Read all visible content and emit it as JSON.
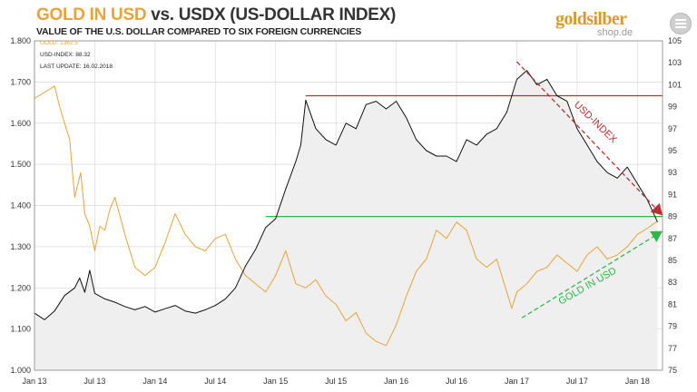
{
  "header": {
    "title_gold": "GOLD IN USD",
    "title_rest": "vs. USDX (US-DOLLAR  INDEX)",
    "subtitle": "VALUE OF THE U.S. DOLLAR COMPARED TO SIX FOREIGN CURRENCIES"
  },
  "logo": {
    "brand": "goldsilber",
    "domain": "shop.de"
  },
  "legend": {
    "gold": "GOLD: 1362.5",
    "usd": "USD-INDEX: 88.32",
    "update": "LAST UPDATE: 16.02.2018"
  },
  "annotations": {
    "usd_index": "USD-INDEX",
    "gold_in_usd": "GOLD IN USD"
  },
  "colors": {
    "gold": "#e8a33a",
    "usd": "#111111",
    "resistance": "#b83232",
    "support": "#2db84a",
    "fill": "#efefef"
  },
  "chart_data": {
    "type": "line",
    "x_ticks": [
      "Jan 13",
      "Jul 13",
      "Jan 14",
      "Jul 14",
      "Jan 15",
      "Jul 15",
      "Jan 16",
      "Jul 16",
      "Jan 17",
      "Jul 17",
      "Jan 18"
    ],
    "xlim": [
      0,
      62.5
    ],
    "left_axis": {
      "ticks": [
        "1.000",
        "1.100",
        "1.200",
        "1.300",
        "1.400",
        "1.500",
        "1.600",
        "1.700",
        "1.800"
      ],
      "ylim": [
        1000,
        1800
      ]
    },
    "right_axis": {
      "ticks": [
        "75",
        "77",
        "79",
        "81",
        "83",
        "85",
        "87",
        "89",
        "91",
        "93",
        "95",
        "97",
        "99",
        "101",
        "103",
        "105"
      ],
      "ylim": [
        75,
        105
      ]
    },
    "grid": true,
    "series": [
      {
        "name": "GOLD IN USD",
        "axis": "left",
        "color": "#e8a33a",
        "points": [
          [
            0,
            1660
          ],
          [
            1,
            1675
          ],
          [
            2,
            1690
          ],
          [
            2.5,
            1640
          ],
          [
            3,
            1600
          ],
          [
            3.5,
            1560
          ],
          [
            4,
            1420
          ],
          [
            4.6,
            1480
          ],
          [
            5,
            1380
          ],
          [
            5.5,
            1350
          ],
          [
            6,
            1290
          ],
          [
            6.5,
            1350
          ],
          [
            7,
            1340
          ],
          [
            7.5,
            1390
          ],
          [
            8,
            1420
          ],
          [
            9,
            1330
          ],
          [
            10,
            1250
          ],
          [
            11,
            1230
          ],
          [
            12,
            1250
          ],
          [
            13,
            1310
          ],
          [
            14,
            1380
          ],
          [
            15,
            1330
          ],
          [
            16,
            1300
          ],
          [
            17,
            1290
          ],
          [
            18,
            1320
          ],
          [
            19,
            1330
          ],
          [
            20,
            1270
          ],
          [
            21,
            1230
          ],
          [
            22,
            1210
          ],
          [
            23,
            1190
          ],
          [
            24,
            1230
          ],
          [
            25,
            1290
          ],
          [
            26,
            1210
          ],
          [
            27,
            1200
          ],
          [
            28,
            1220
          ],
          [
            29,
            1180
          ],
          [
            30,
            1160
          ],
          [
            31,
            1120
          ],
          [
            32,
            1140
          ],
          [
            33,
            1090
          ],
          [
            34,
            1070
          ],
          [
            35,
            1060
          ],
          [
            36,
            1110
          ],
          [
            37,
            1180
          ],
          [
            38,
            1240
          ],
          [
            39,
            1270
          ],
          [
            40,
            1340
          ],
          [
            41,
            1320
          ],
          [
            42,
            1360
          ],
          [
            43,
            1340
          ],
          [
            44,
            1270
          ],
          [
            45,
            1250
          ],
          [
            46,
            1270
          ],
          [
            47,
            1190
          ],
          [
            47.5,
            1150
          ],
          [
            48,
            1190
          ],
          [
            49,
            1210
          ],
          [
            50,
            1240
          ],
          [
            51,
            1250
          ],
          [
            52,
            1280
          ],
          [
            53,
            1260
          ],
          [
            54,
            1240
          ],
          [
            55,
            1280
          ],
          [
            56,
            1300
          ],
          [
            57,
            1270
          ],
          [
            58,
            1280
          ],
          [
            59,
            1300
          ],
          [
            60,
            1330
          ],
          [
            61,
            1345
          ],
          [
            62,
            1362
          ]
        ]
      },
      {
        "name": "USD-INDEX",
        "axis": "right",
        "color": "#111111",
        "points": [
          [
            0,
            80.2
          ],
          [
            1,
            79.6
          ],
          [
            2,
            80.4
          ],
          [
            3,
            81.8
          ],
          [
            4,
            82.5
          ],
          [
            4.5,
            83.4
          ],
          [
            5,
            82.1
          ],
          [
            5.5,
            84.1
          ],
          [
            6,
            82.0
          ],
          [
            7,
            81.5
          ],
          [
            8,
            81.2
          ],
          [
            9,
            80.8
          ],
          [
            10,
            80.5
          ],
          [
            11,
            80.8
          ],
          [
            12,
            80.3
          ],
          [
            13,
            80.6
          ],
          [
            14,
            80.9
          ],
          [
            15,
            80.4
          ],
          [
            16,
            80.2
          ],
          [
            17,
            80.5
          ],
          [
            18,
            80.9
          ],
          [
            19,
            81.5
          ],
          [
            20,
            82.5
          ],
          [
            21,
            84.5
          ],
          [
            22,
            86.0
          ],
          [
            23,
            88.0
          ],
          [
            24,
            88.8
          ],
          [
            25,
            91.5
          ],
          [
            26,
            94.0
          ],
          [
            26.5,
            95.5
          ],
          [
            27,
            99.6
          ],
          [
            28,
            97.0
          ],
          [
            29,
            96.0
          ],
          [
            30,
            95.5
          ],
          [
            31,
            97.5
          ],
          [
            32,
            97.0
          ],
          [
            33,
            99.2
          ],
          [
            34,
            99.5
          ],
          [
            35,
            98.8
          ],
          [
            36,
            99.5
          ],
          [
            37,
            98.0
          ],
          [
            38,
            96.0
          ],
          [
            39,
            95.0
          ],
          [
            40,
            94.5
          ],
          [
            41,
            94.5
          ],
          [
            42,
            94.0
          ],
          [
            43,
            96.0
          ],
          [
            44,
            95.5
          ],
          [
            45,
            96.5
          ],
          [
            46,
            97.0
          ],
          [
            47,
            98.5
          ],
          [
            48,
            101.5
          ],
          [
            49,
            102.3
          ],
          [
            50,
            101.0
          ],
          [
            51,
            101.5
          ],
          [
            52,
            100.0
          ],
          [
            53,
            99.5
          ],
          [
            54,
            97.0
          ],
          [
            55,
            95.5
          ],
          [
            56,
            94.0
          ],
          [
            57,
            93.0
          ],
          [
            58,
            92.5
          ],
          [
            59,
            93.5
          ],
          [
            60,
            92.0
          ],
          [
            61,
            90.5
          ],
          [
            62,
            88.5
          ]
        ]
      }
    ],
    "reference_lines": [
      {
        "axis": "right",
        "y": 100.0,
        "x": [
          27,
          62.5
        ],
        "color": "#b83232"
      },
      {
        "axis": "right",
        "y": 89.0,
        "x": [
          23,
          62.5
        ],
        "color": "#2db84a"
      }
    ],
    "trend_arrows": [
      {
        "series": "USD-INDEX",
        "axis": "right",
        "from": [
          48,
          103.1
        ],
        "to": [
          62.5,
          89.1
        ],
        "color": "#b83232"
      },
      {
        "series": "GOLD IN USD",
        "axis": "left",
        "from": [
          48.5,
          1127
        ],
        "to": [
          62.5,
          1338
        ],
        "color": "#2db84a"
      }
    ]
  }
}
